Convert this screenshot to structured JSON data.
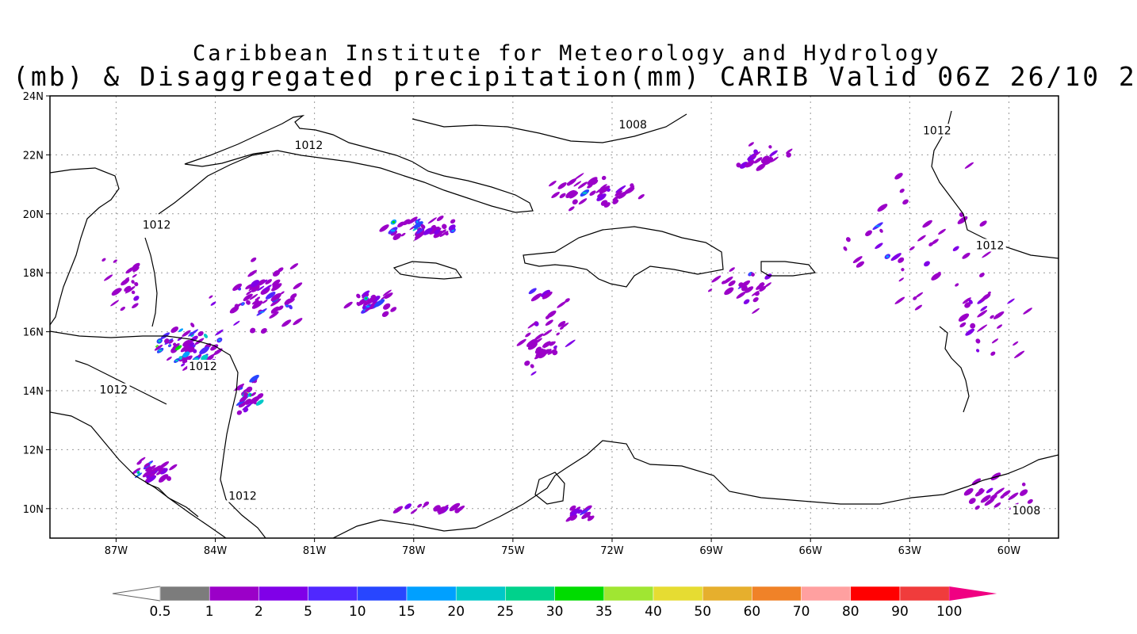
{
  "title": {
    "line1": "Caribbean Institute for Meteorology and Hydrology",
    "line2": "(mb) & Disaggregated precipitation(mm) CARIB Valid 06Z 26/10 2"
  },
  "map": {
    "lon_range": [
      -89,
      -58.5
    ],
    "lat_range": [
      9,
      24
    ],
    "lon_ticks": [
      {
        "value": -87,
        "label": "87W"
      },
      {
        "value": -84,
        "label": "84W"
      },
      {
        "value": -81,
        "label": "81W"
      },
      {
        "value": -78,
        "label": "78W"
      },
      {
        "value": -75,
        "label": "75W"
      },
      {
        "value": -72,
        "label": "72W"
      },
      {
        "value": -69,
        "label": "69W"
      },
      {
        "value": -66,
        "label": "66W"
      },
      {
        "value": -63,
        "label": "63W"
      },
      {
        "value": -60,
        "label": "60W"
      }
    ],
    "lat_ticks": [
      {
        "value": 10,
        "label": "10N"
      },
      {
        "value": 12,
        "label": "12N"
      },
      {
        "value": 14,
        "label": "14N"
      },
      {
        "value": 16,
        "label": "16N"
      },
      {
        "value": 18,
        "label": "18N"
      },
      {
        "value": 20,
        "label": "20N"
      },
      {
        "value": 22,
        "label": "22N"
      },
      {
        "value": 24,
        "label": "24N"
      }
    ],
    "grid": true,
    "contour_labels": [
      {
        "text": "1012",
        "lon": -81.6,
        "lat": 22.2
      },
      {
        "text": "1008",
        "lon": -71.8,
        "lat": 22.9
      },
      {
        "text": "1012",
        "lon": -62.6,
        "lat": 22.7
      },
      {
        "text": "1012",
        "lon": -86.2,
        "lat": 19.5
      },
      {
        "text": "1012",
        "lon": -61.0,
        "lat": 18.8
      },
      {
        "text": "1012",
        "lon": -84.8,
        "lat": 14.7
      },
      {
        "text": "1012",
        "lon": -87.5,
        "lat": 13.9
      },
      {
        "text": "1012",
        "lon": -83.6,
        "lat": 10.3
      },
      {
        "text": "1008",
        "lon": -59.9,
        "lat": 9.8
      }
    ]
  },
  "colorbar": {
    "labels": [
      "0.5",
      "1",
      "2",
      "5",
      "10",
      "15",
      "20",
      "25",
      "30",
      "35",
      "40",
      "50",
      "60",
      "70",
      "80",
      "90",
      "100"
    ],
    "colors": [
      "#7c7c7c",
      "#9b00c8",
      "#8000e8",
      "#5028ff",
      "#2846ff",
      "#00a0ff",
      "#00c8c8",
      "#00d28c",
      "#00dc00",
      "#a0e632",
      "#e6dc32",
      "#e6af2d",
      "#f08228",
      "#ffa0a0",
      "#ff0000",
      "#f03c3c",
      "#f00082"
    ],
    "lower_triangle": "#ffffff",
    "upper_triangle": "#f00082"
  },
  "rain_palette": [
    "#7c7c7c",
    "#9b00c8",
    "#8000e8",
    "#5028ff",
    "#2846ff",
    "#00a0ff",
    "#00c8c8",
    "#00dc00",
    "#e6dc32"
  ],
  "rain_clusters": [
    {
      "lon": -84.8,
      "lat": 15.4,
      "n": 60,
      "spread": [
        1.4,
        0.9
      ],
      "max": 8
    },
    {
      "lon": -83.0,
      "lat": 13.8,
      "n": 30,
      "spread": [
        0.5,
        0.9
      ],
      "max": 7
    },
    {
      "lon": -85.8,
      "lat": 11.2,
      "n": 28,
      "spread": [
        0.9,
        0.6
      ],
      "max": 7
    },
    {
      "lon": -82.5,
      "lat": 17.2,
      "n": 60,
      "spread": [
        1.8,
        1.6
      ],
      "max": 5
    },
    {
      "lon": -79.3,
      "lat": 17.0,
      "n": 30,
      "spread": [
        1.0,
        0.5
      ],
      "max": 6
    },
    {
      "lon": -77.8,
      "lat": 19.5,
      "n": 40,
      "spread": [
        1.6,
        0.5
      ],
      "max": 6
    },
    {
      "lon": -72.6,
      "lat": 20.7,
      "n": 40,
      "spread": [
        2.2,
        0.7
      ],
      "max": 4
    },
    {
      "lon": -67.3,
      "lat": 21.9,
      "n": 20,
      "spread": [
        1.2,
        0.8
      ],
      "max": 3
    },
    {
      "lon": -74.0,
      "lat": 15.8,
      "n": 40,
      "spread": [
        1.0,
        2.4
      ],
      "max": 3
    },
    {
      "lon": -68.0,
      "lat": 17.5,
      "n": 25,
      "spread": [
        1.5,
        1.3
      ],
      "max": 3
    },
    {
      "lon": -62.5,
      "lat": 19.0,
      "n": 40,
      "spread": [
        3.0,
        3.0
      ],
      "max": 3
    },
    {
      "lon": -60.5,
      "lat": 16.5,
      "n": 25,
      "spread": [
        1.5,
        2.0
      ],
      "max": 3
    },
    {
      "lon": -73.0,
      "lat": 9.8,
      "n": 18,
      "spread": [
        0.5,
        0.5
      ],
      "max": 5
    },
    {
      "lon": -77.5,
      "lat": 10.0,
      "n": 15,
      "spread": [
        1.5,
        0.3
      ],
      "max": 3
    },
    {
      "lon": -60.5,
      "lat": 10.5,
      "n": 20,
      "spread": [
        1.5,
        0.8
      ],
      "max": 4
    },
    {
      "lon": -86.7,
      "lat": 17.5,
      "n": 20,
      "spread": [
        0.8,
        1.5
      ],
      "max": 3
    }
  ]
}
